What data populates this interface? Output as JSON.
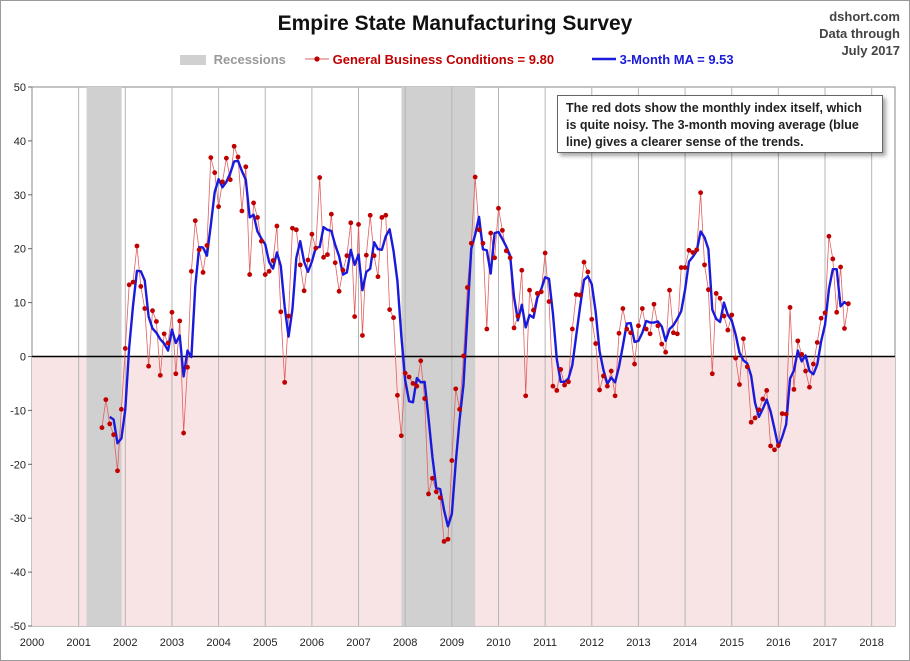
{
  "title": "Empire State Manufacturing Survey",
  "source": {
    "line1": "dshort.com",
    "line2": "Data through",
    "line3": "July 2017"
  },
  "legend": {
    "recessions": "Recessions",
    "gbc": "General Business Conditions = 9.80",
    "ma": "3-Month MA = 9.53"
  },
  "note": "The red dots show the monthly  index itself, which is quite noisy. The 3-month moving average (blue line) gives a clearer sense of the trends.",
  "colors": {
    "dots": "#c00000",
    "thin_line": "#e06060",
    "ma": "#1a1adb",
    "recession": "#d0d0d0",
    "negative_band": "#f8e4e4"
  },
  "chart_data": {
    "type": "line",
    "xlim": [
      2000,
      2018.5
    ],
    "ylim": [
      -50,
      50
    ],
    "x_ticks": [
      "2000",
      "2001",
      "2002",
      "2003",
      "2004",
      "2005",
      "2006",
      "2007",
      "2008",
      "2009",
      "2010",
      "2011",
      "2012",
      "2013",
      "2014",
      "2015",
      "2016",
      "2017",
      "2018"
    ],
    "y_ticks": [
      "50",
      "40",
      "30",
      "20",
      "10",
      "0",
      "-10",
      "-20",
      "-30",
      "-40",
      "-50"
    ],
    "recessions": [
      [
        2001.17,
        2001.92
      ],
      [
        2007.92,
        2009.5
      ]
    ],
    "series": [
      {
        "name": "General Business Conditions = 9.80",
        "start": "2001-07",
        "values": [
          -13.2,
          -8,
          -12.5,
          -14.5,
          -21.2,
          -9.8,
          1.5,
          13.3,
          13.8,
          20.5,
          13,
          8.9,
          -1.8,
          8.5,
          6.5,
          -3.5,
          4.2,
          2.5,
          8.2,
          -3.2,
          6.6,
          -14.2,
          -2,
          15.8,
          25.2,
          19.8,
          15.6,
          20.6,
          36.9,
          34.1,
          27.8,
          32.4,
          36.8,
          32.8,
          39,
          37,
          27,
          35.2,
          15.2,
          28.5,
          25.8,
          21.4,
          15.2,
          15.8,
          17.8,
          24.2,
          8.3,
          -4.8,
          7.5,
          23.8,
          23.5,
          17,
          12.2,
          17.9,
          22.7,
          20.1,
          33.2,
          18.4,
          18.9,
          26.4,
          17.4,
          12.1,
          16,
          18.7,
          24.8,
          7.4,
          24.5,
          3.9,
          18.8,
          26.2,
          18.7,
          14.8,
          25.8,
          26.2,
          8.7,
          7.2,
          -7.2,
          -14.7,
          -3.1,
          -3.8,
          -5,
          -5.5,
          -0.8,
          -7.8,
          -25.5,
          -22.6,
          -25.1,
          -26.2,
          -34.3,
          -33.9,
          -19.3,
          -6,
          -9.8,
          0.1,
          12.8,
          21,
          33.3,
          23.5,
          21,
          5.1,
          22.9,
          18.3,
          27.5,
          23.4,
          19.6,
          18.3,
          5.3,
          7.5,
          16,
          -7.3,
          12.3,
          8.6,
          11.7,
          12,
          19.2,
          10.2,
          -5.5,
          -6.3,
          -2.4,
          -5.3,
          -4.7,
          5.1,
          11.5,
          11.4,
          17.5,
          15.7,
          6.9,
          2.4,
          -6.2,
          -3.6,
          -5.5,
          -2.7,
          -7.3,
          4.3,
          8.9,
          5.1,
          4.4,
          -1.4,
          5.7,
          8.9,
          5.1,
          4.2,
          9.7,
          5.7,
          2.3,
          0.8,
          12.3,
          4.4,
          4.2,
          16.5,
          16.5,
          19.7,
          19.3,
          19.8,
          30.4,
          17,
          12.4,
          -3.2,
          11.7,
          10.8,
          7.5,
          4.9,
          7.7,
          -0.3,
          -5.2,
          3.3,
          -1.9,
          -12.2,
          -11.4,
          -9.9,
          -7.9,
          -6.3,
          -16.6,
          -17.3,
          -16.5,
          -10.6,
          -10.7,
          9.1,
          -6.1,
          2.9,
          0.4,
          -2.7,
          -5.7,
          -1.4,
          2.6,
          7.1,
          8.1,
          22.3,
          18.1,
          8.2,
          16.6,
          5.2,
          9.8
        ]
      },
      {
        "name": "3-Month MA = 9.53",
        "start": "2001-09",
        "values": [
          -11.2,
          -11.7,
          -16.1,
          -15.2,
          -9.8,
          1.7,
          9.5,
          15.9,
          15.8,
          14.1,
          7.4,
          5.2,
          4.4,
          3.2,
          2.4,
          1.1,
          5,
          2.5,
          3.9,
          -3.7,
          1.1,
          -0.1,
          13,
          20.3,
          20.2,
          18.7,
          24.4,
          30.5,
          32.9,
          31.4,
          32.4,
          34,
          36.2,
          36.3,
          34.4,
          32.8,
          25.8,
          26.3,
          23.2,
          21.9,
          20.8,
          17.5,
          16.3,
          19.3,
          16.8,
          9.2,
          3.7,
          8.8,
          18.3,
          21.4,
          17.6,
          15.7,
          17.6,
          20.2,
          20.3,
          24,
          23.5,
          23.3,
          20.7,
          18.6,
          15.2,
          15.6,
          19.8,
          17,
          18.9,
          12.3,
          15.7,
          16.3,
          21.2,
          19.9,
          19.8,
          22.3,
          23.6,
          19.6,
          14,
          3.9,
          -4.4,
          -8.3,
          -8.5,
          -4,
          -4.8,
          -4.7,
          -11.4,
          -18.6,
          -24.4,
          -24.6,
          -28.5,
          -31.5,
          -29.2,
          -19.7,
          -11.7,
          -5.2,
          7.6,
          20,
          22.6,
          25.9,
          19.9,
          19.7,
          15.4,
          22.9,
          23.1,
          21.8,
          20.4,
          18.7,
          11,
          6.7,
          9.6,
          5.4,
          7.7,
          7.2,
          10.9,
          12.5,
          14.7,
          14.4,
          8,
          -0.5,
          -4.7,
          -4.7,
          -4.1,
          -1.6,
          3.9,
          9.3,
          14.2,
          14.9,
          13.4,
          8.3,
          1,
          -2.5,
          -5.1,
          -3.9,
          -4.8,
          -1.9,
          2,
          6.1,
          6.2,
          2.7,
          2.9,
          4.4,
          6.6,
          6.3,
          6.3,
          6.5,
          5.6,
          2.9,
          5.1,
          5.8,
          7,
          8.4,
          12.4,
          17.6,
          18.5,
          19.6,
          23.2,
          22.1,
          19.9,
          8.7,
          7,
          6.4,
          10,
          7.7,
          6.7,
          4.1,
          0.7,
          -0.7,
          -1.3,
          -3.6,
          -8.6,
          -11.2,
          -9.7,
          -8,
          -10.2,
          -13.4,
          -16.8,
          -14.9,
          -12.6,
          -4.1,
          -2.6,
          1.1,
          -0.9,
          0.2,
          -2.7,
          -3.3,
          -1.5,
          2.8,
          5.9,
          12.5,
          16.2,
          16.2,
          9.3,
          10.1,
          9.5
        ]
      }
    ]
  }
}
